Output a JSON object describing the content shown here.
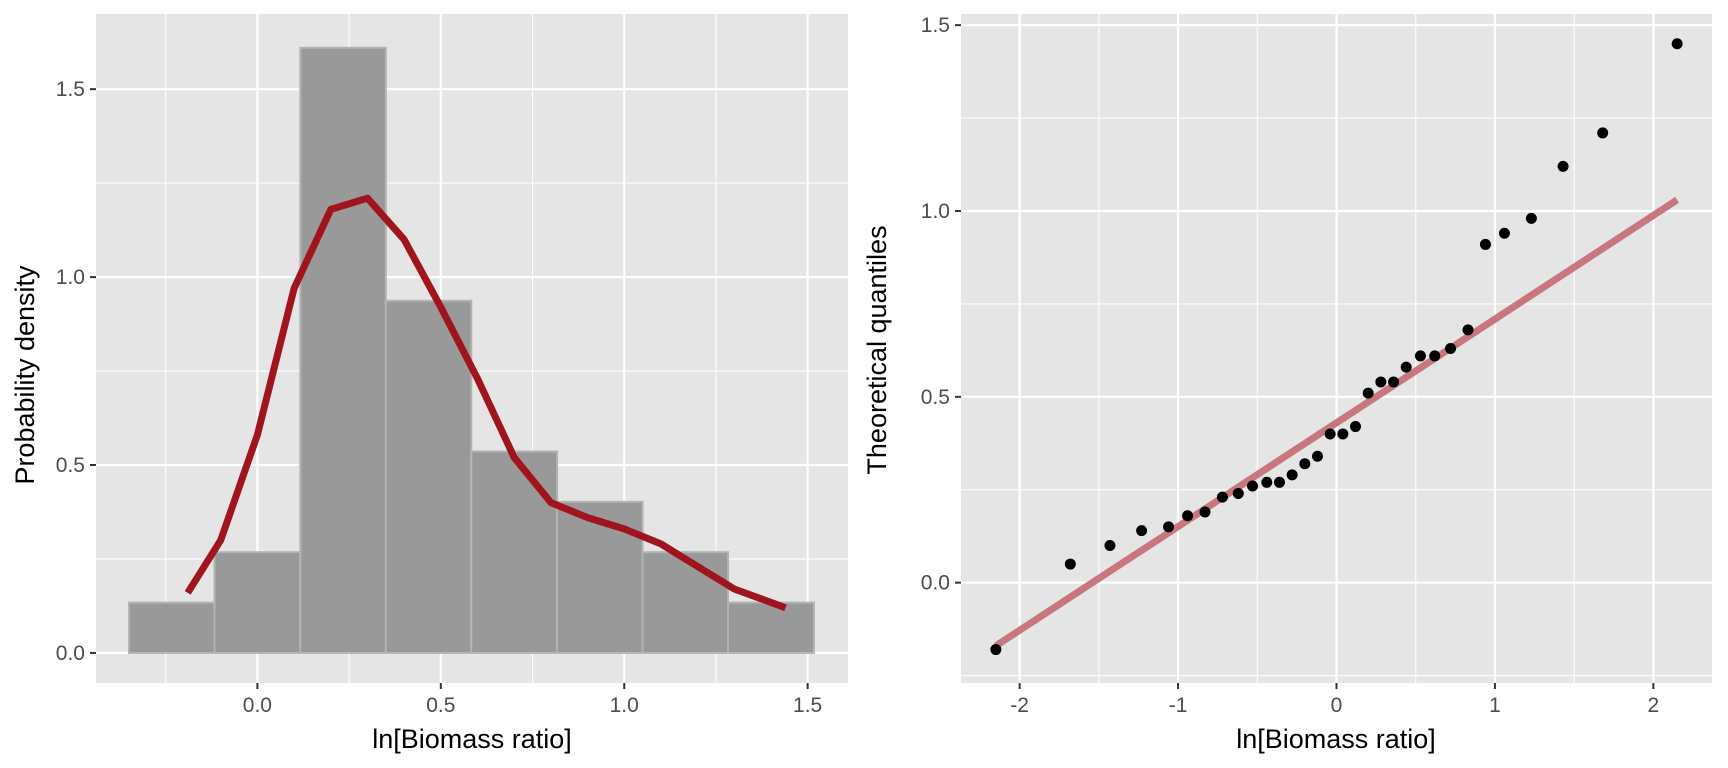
{
  "chart_data": [
    {
      "type": "bar",
      "subtype": "histogram-with-density",
      "xlabel": "ln[Biomass ratio]",
      "ylabel": "Probability density",
      "xlim": [
        -0.44,
        1.61
      ],
      "ylim": [
        -0.08,
        1.7
      ],
      "x_ticks": [
        "0.0",
        "0.5",
        "1.0",
        "1.5"
      ],
      "y_ticks": [
        "0.0",
        "0.5",
        "1.0",
        "1.5"
      ],
      "grid": true,
      "bins": [
        {
          "x0": -0.35,
          "x1": -0.117,
          "density": 0.134
        },
        {
          "x0": -0.117,
          "x1": 0.117,
          "density": 0.268
        },
        {
          "x0": 0.117,
          "x1": 0.35,
          "density": 1.61
        },
        {
          "x0": 0.35,
          "x1": 0.583,
          "density": 0.937
        },
        {
          "x0": 0.583,
          "x1": 0.817,
          "density": 0.536
        },
        {
          "x0": 0.817,
          "x1": 1.05,
          "density": 0.402
        },
        {
          "x0": 1.05,
          "x1": 1.283,
          "density": 0.268
        },
        {
          "x0": 1.283,
          "x1": 1.517,
          "density": 0.134
        }
      ],
      "density_curve": {
        "x": [
          -0.19,
          -0.1,
          0.0,
          0.1,
          0.2,
          0.3,
          0.4,
          0.5,
          0.6,
          0.7,
          0.8,
          0.9,
          1.0,
          1.1,
          1.2,
          1.3,
          1.44
        ],
        "y": [
          0.16,
          0.3,
          0.58,
          0.97,
          1.18,
          1.21,
          1.1,
          0.92,
          0.73,
          0.52,
          0.4,
          0.36,
          0.33,
          0.29,
          0.23,
          0.17,
          0.12
        ]
      },
      "colors": {
        "bar_fill": "#999999",
        "bar_edge": "#b3b3b3",
        "curve": "#a0141e"
      }
    },
    {
      "type": "scatter",
      "subtype": "qq-plot",
      "xlabel": "ln[Biomass ratio]",
      "ylabel": "Theoretical quantiles",
      "xlim": [
        -2.37,
        2.37
      ],
      "ylim": [
        -0.27,
        1.53
      ],
      "x_ticks": [
        "-2",
        "-1",
        "0",
        "1",
        "2"
      ],
      "y_ticks": [
        "0.0",
        "0.5",
        "1.0",
        "1.5"
      ],
      "grid": true,
      "points": {
        "x": [
          -2.15,
          -1.68,
          -1.43,
          -1.23,
          -1.06,
          -0.94,
          -0.83,
          -0.72,
          -0.62,
          -0.53,
          -0.44,
          -0.36,
          -0.28,
          -0.2,
          -0.12,
          -0.04,
          0.04,
          0.12,
          0.2,
          0.28,
          0.36,
          0.44,
          0.53,
          0.62,
          0.72,
          0.83,
          0.94,
          1.06,
          1.23,
          1.43,
          1.68,
          2.15
        ],
        "y": [
          -0.18,
          0.05,
          0.1,
          0.14,
          0.15,
          0.18,
          0.19,
          0.23,
          0.24,
          0.26,
          0.27,
          0.27,
          0.29,
          0.32,
          0.34,
          0.4,
          0.4,
          0.42,
          0.51,
          0.54,
          0.54,
          0.58,
          0.61,
          0.61,
          0.63,
          0.68,
          0.91,
          0.94,
          0.98,
          1.12,
          1.21,
          1.45
        ]
      },
      "reference_line": {
        "x": [
          -2.15,
          2.15
        ],
        "y": [
          -0.17,
          1.03
        ]
      },
      "colors": {
        "points": "#000000",
        "line": "#c7777d"
      }
    }
  ]
}
